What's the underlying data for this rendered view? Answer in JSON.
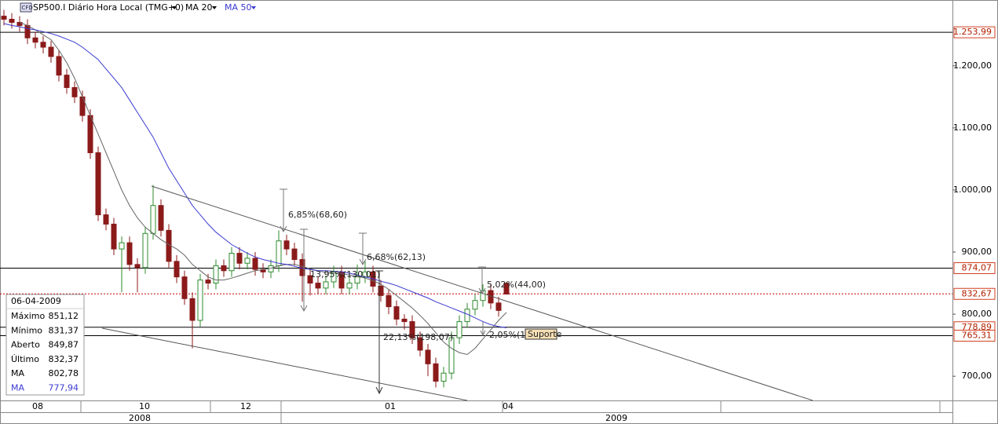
{
  "chart_data": {
    "type": "candlestick",
    "title": "SP500.I Diário Hora Local (TMG+0)",
    "badge": "CFD",
    "indicators": [
      "MA 20",
      "MA 50"
    ],
    "up_color": "#2e8b2e",
    "down_color": "#8b1a1a",
    "open": [
      1280,
      1275,
      1270,
      1265,
      1245,
      1238,
      1230,
      1215,
      1185,
      1165,
      1150,
      1120,
      1060,
      960,
      945,
      905,
      915,
      880,
      875,
      930,
      975,
      935,
      885,
      860,
      825,
      790,
      855,
      850,
      878,
      870,
      898,
      882,
      890,
      872,
      868,
      878,
      918,
      905,
      888,
      862,
      850,
      842,
      852,
      868,
      842,
      850,
      860,
      868,
      845,
      830,
      812,
      792,
      788,
      762,
      742,
      720,
      692,
      705,
      762,
      788,
      808,
      822,
      838,
      818,
      849.87
    ],
    "high": [
      1290,
      1285,
      1280,
      1275,
      1255,
      1248,
      1240,
      1225,
      1195,
      1175,
      1160,
      1130,
      1070,
      970,
      955,
      925,
      925,
      890,
      940,
      1008,
      985,
      945,
      895,
      870,
      835,
      865,
      865,
      888,
      888,
      908,
      908,
      900,
      900,
      882,
      888,
      935,
      928,
      915,
      898,
      872,
      860,
      862,
      878,
      878,
      860,
      880,
      885,
      878,
      855,
      840,
      822,
      800,
      798,
      772,
      752,
      730,
      715,
      772,
      798,
      818,
      832,
      848,
      848,
      828,
      851.12
    ],
    "low": [
      1265,
      1260,
      1255,
      1235,
      1228,
      1220,
      1205,
      1175,
      1155,
      1140,
      1110,
      1050,
      950,
      935,
      895,
      835,
      870,
      835,
      865,
      920,
      925,
      875,
      850,
      815,
      745,
      780,
      840,
      840,
      860,
      860,
      872,
      872,
      862,
      858,
      858,
      868,
      895,
      878,
      820,
      830,
      832,
      832,
      842,
      832,
      832,
      840,
      850,
      835,
      820,
      800,
      782,
      775,
      752,
      732,
      700,
      682,
      682,
      695,
      752,
      778,
      798,
      812,
      808,
      796,
      831.37
    ],
    "close": [
      1275,
      1270,
      1265,
      1245,
      1238,
      1230,
      1215,
      1185,
      1165,
      1150,
      1120,
      1060,
      960,
      945,
      905,
      915,
      880,
      875,
      930,
      975,
      935,
      885,
      860,
      825,
      790,
      855,
      850,
      878,
      870,
      898,
      882,
      890,
      872,
      868,
      878,
      918,
      905,
      888,
      862,
      850,
      842,
      852,
      868,
      842,
      850,
      860,
      868,
      845,
      830,
      812,
      792,
      788,
      762,
      742,
      720,
      692,
      705,
      762,
      788,
      808,
      822,
      838,
      818,
      806,
      832.37
    ],
    "series": [
      {
        "name": "MA 20",
        "color": "#666666",
        "values": [
          null,
          null,
          1270,
          1265,
          1258,
          1250,
          1242,
          1225,
          1205,
          1180,
          1150,
          1120,
          1090,
          1060,
          1030,
          1000,
          975,
          955,
          940,
          930,
          920,
          912,
          905,
          895,
          880,
          870,
          860,
          855,
          855,
          858,
          862,
          866,
          870,
          872,
          874,
          878,
          880,
          880,
          877,
          873,
          870,
          867,
          866,
          865,
          863,
          861,
          858,
          854,
          848,
          840,
          830,
          820,
          810,
          798,
          785,
          770,
          755,
          745,
          738,
          735,
          745,
          760,
          775,
          790,
          802.78
        ]
      },
      {
        "name": "MA 50",
        "color": "#3a3ad0",
        "values": [
          1268,
          1265,
          1263,
          1260,
          1258,
          1255,
          1252,
          1248,
          1243,
          1238,
          1230,
          1220,
          1210,
          1195,
          1180,
          1165,
          1145,
          1125,
          1105,
          1085,
          1060,
          1035,
          1015,
          995,
          975,
          960,
          945,
          932,
          922,
          912,
          905,
          898,
          892,
          888,
          885,
          882,
          880,
          877,
          874,
          872,
          870,
          870,
          869,
          868,
          866,
          863,
          860,
          857,
          853,
          850,
          846,
          841,
          836,
          831,
          826,
          820,
          815,
          810,
          805,
          800,
          794,
          788,
          783,
          780,
          777.94
        ]
      }
    ],
    "xlim": [
      -0.5,
      120.8
    ],
    "xticks": [
      {
        "value": 4.3,
        "label": "08"
      },
      {
        "value": 17.9,
        "label": "10"
      },
      {
        "value": 30.8,
        "label": "12"
      },
      {
        "value": 49.2,
        "label": "01"
      },
      {
        "value": 64.2,
        "label": "04"
      }
    ],
    "years": [
      {
        "value": 17.3,
        "label": "2008"
      },
      {
        "value": 78,
        "label": "2009"
      }
    ],
    "ylim": [
      661,
      1306
    ],
    "yticks": [
      {
        "value": 700,
        "label": "700,00"
      },
      {
        "value": 800,
        "label": "800,00"
      },
      {
        "value": 900,
        "label": "900,00"
      },
      {
        "value": 1000,
        "label": "1.000,00"
      },
      {
        "value": 1100,
        "label": "1.100,00"
      },
      {
        "value": 1200,
        "label": "1.200,00"
      }
    ],
    "levels": [
      {
        "value": 1253.99,
        "label": "1.253,99"
      },
      {
        "value": 874.07,
        "label": "874,07"
      },
      {
        "value": 832.67,
        "label": "832,67"
      },
      {
        "value": 778.89,
        "label": "778,89"
      },
      {
        "value": 765.31,
        "label": "765,31"
      }
    ],
    "annotations": [
      "6,85%(68,60)",
      "6,68%(62,13)",
      "13,95%(130,01)",
      "5,02%(44,00)",
      "22,13%(198,07)",
      "2,05%(16,00)",
      "Suporte"
    ],
    "info": {
      "date": "06-04-2009",
      "rows": [
        {
          "label": "Máximo",
          "value": "851,12"
        },
        {
          "label": "Mínimo",
          "value": "831,37"
        },
        {
          "label": "Aberto",
          "value": "849,87"
        },
        {
          "label": "Último",
          "value": "832,37"
        },
        {
          "label": "MA",
          "value": "802,78"
        },
        {
          "label": "MA",
          "value": "777,94"
        }
      ]
    }
  }
}
